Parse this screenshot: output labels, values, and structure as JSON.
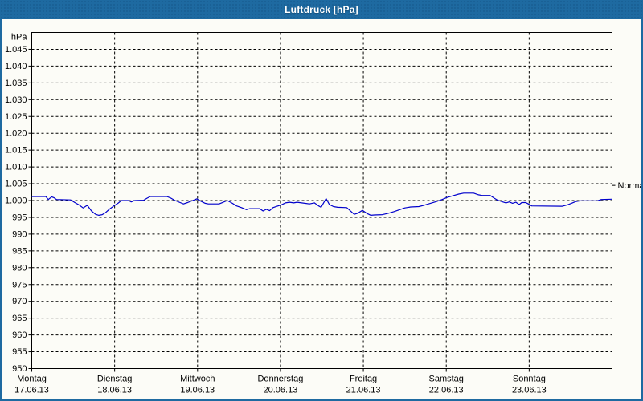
{
  "window": {
    "title": "Luftdruck [hPa]",
    "titlebar_color": "#1e6aa1",
    "border_color": "#1e6aa1",
    "background_color": "#fcfcf7"
  },
  "chart_data": {
    "type": "line",
    "title": "Luftdruck [hPa]",
    "grid": "dashed",
    "legend_position": "none",
    "line_color": "#0000cc",
    "ylim": [
      950,
      1050
    ],
    "xlim_days": [
      0,
      7
    ],
    "y_axis": {
      "unit": "hPa",
      "tick_values": [
        950,
        955,
        960,
        965,
        970,
        975,
        980,
        985,
        990,
        995,
        1000,
        1005,
        1010,
        1015,
        1020,
        1025,
        1030,
        1035,
        1040,
        1045
      ],
      "tick_labels": [
        "950",
        "955",
        "960",
        "965",
        "970",
        "975",
        "980",
        "985",
        "990",
        "995",
        "1.000",
        "1.005",
        "1.010",
        "1.015",
        "1.020",
        "1.025",
        "1.030",
        "1.035",
        "1.040",
        "1.045"
      ]
    },
    "x_days": [
      {
        "name": "Montag",
        "date": "17.06.13"
      },
      {
        "name": "Dienstag",
        "date": "18.06.13"
      },
      {
        "name": "Mittwoch",
        "date": "19.06.13"
      },
      {
        "name": "Donnerstag",
        "date": "20.06.13"
      },
      {
        "name": "Freitag",
        "date": "21.06.13"
      },
      {
        "name": "Samstag",
        "date": "22.06.13"
      },
      {
        "name": "Sonntag",
        "date": "23.06.13"
      }
    ],
    "normal_marker": {
      "label": "Normal",
      "value": 1004.5
    },
    "series": [
      {
        "name": "Luftdruck",
        "x_unit": "days since Montag 17.06.13 00:00",
        "y_unit": "hPa",
        "points": [
          [
            0,
            1001.2
          ],
          [
            0.17,
            1001.2
          ],
          [
            0.2,
            1000.3
          ],
          [
            0.24,
            1001.1
          ],
          [
            0.27,
            1000.8
          ],
          [
            0.3,
            1000.3
          ],
          [
            0.47,
            1000.2
          ],
          [
            0.52,
            999.4
          ],
          [
            0.57,
            998.7
          ],
          [
            0.62,
            997.8
          ],
          [
            0.67,
            998.6
          ],
          [
            0.72,
            996.9
          ],
          [
            0.77,
            995.9
          ],
          [
            0.81,
            995.6
          ],
          [
            0.85,
            995.8
          ],
          [
            0.89,
            996.4
          ],
          [
            0.94,
            997.5
          ],
          [
            0.99,
            998.4
          ],
          [
            1.04,
            999.2
          ],
          [
            1.08,
            1000.0
          ],
          [
            1.17,
            1000.0
          ],
          [
            1.2,
            999.6
          ],
          [
            1.24,
            1000.0
          ],
          [
            1.35,
            1000.1
          ],
          [
            1.39,
            1000.7
          ],
          [
            1.43,
            1001.2
          ],
          [
            1.63,
            1001.2
          ],
          [
            1.68,
            1000.7
          ],
          [
            1.73,
            1000.0
          ],
          [
            1.79,
            999.4
          ],
          [
            1.83,
            999.0
          ],
          [
            1.88,
            999.4
          ],
          [
            1.93,
            999.9
          ],
          [
            1.99,
            1000.5
          ],
          [
            2.04,
            999.8
          ],
          [
            2.09,
            999.2
          ],
          [
            2.13,
            999.0
          ],
          [
            2.26,
            999.0
          ],
          [
            2.31,
            999.5
          ],
          [
            2.36,
            1000.0
          ],
          [
            2.42,
            999.2
          ],
          [
            2.47,
            998.4
          ],
          [
            2.53,
            997.9
          ],
          [
            2.59,
            997.3
          ],
          [
            2.63,
            997.6
          ],
          [
            2.75,
            997.6
          ],
          [
            2.79,
            996.9
          ],
          [
            2.83,
            997.4
          ],
          [
            2.87,
            997.0
          ],
          [
            2.91,
            997.9
          ],
          [
            2.96,
            998.3
          ],
          [
            3.01,
            998.7
          ],
          [
            3.06,
            999.3
          ],
          [
            3.11,
            999.5
          ],
          [
            3.16,
            999.3
          ],
          [
            3.2,
            999.5
          ],
          [
            3.35,
            999.0
          ],
          [
            3.41,
            999.3
          ],
          [
            3.46,
            998.4
          ],
          [
            3.49,
            998.0
          ],
          [
            3.52,
            999.3
          ],
          [
            3.55,
            1000.6
          ],
          [
            3.59,
            998.8
          ],
          [
            3.64,
            998.2
          ],
          [
            3.69,
            998.0
          ],
          [
            3.8,
            997.9
          ],
          [
            3.84,
            997.0
          ],
          [
            3.89,
            995.9
          ],
          [
            3.93,
            996.2
          ],
          [
            3.99,
            997.1
          ],
          [
            4.04,
            996.2
          ],
          [
            4.09,
            995.6
          ],
          [
            4.13,
            995.7
          ],
          [
            4.23,
            995.8
          ],
          [
            4.3,
            996.2
          ],
          [
            4.37,
            996.7
          ],
          [
            4.43,
            997.2
          ],
          [
            4.5,
            997.8
          ],
          [
            4.57,
            998.1
          ],
          [
            4.67,
            998.2
          ],
          [
            4.73,
            998.6
          ],
          [
            4.81,
            999.2
          ],
          [
            4.88,
            999.7
          ],
          [
            4.95,
            1000.3
          ],
          [
            5.01,
            1000.9
          ],
          [
            5.08,
            1001.4
          ],
          [
            5.15,
            1001.9
          ],
          [
            5.21,
            1002.2
          ],
          [
            5.33,
            1002.2
          ],
          [
            5.39,
            1001.7
          ],
          [
            5.43,
            1001.5
          ],
          [
            5.53,
            1001.5
          ],
          [
            5.58,
            1000.7
          ],
          [
            5.62,
            1000.1
          ],
          [
            5.68,
            999.6
          ],
          [
            5.72,
            999.3
          ],
          [
            5.76,
            999.6
          ],
          [
            5.8,
            999.2
          ],
          [
            5.84,
            999.5
          ],
          [
            5.88,
            998.8
          ],
          [
            5.91,
            999.4
          ],
          [
            5.96,
            999.4
          ],
          [
            5.99,
            999.0
          ],
          [
            6.03,
            998.4
          ],
          [
            6.4,
            998.3
          ],
          [
            6.46,
            998.7
          ],
          [
            6.51,
            999.2
          ],
          [
            6.56,
            999.7
          ],
          [
            6.61,
            999.9
          ],
          [
            6.82,
            999.9
          ],
          [
            6.87,
            1000.3
          ],
          [
            7,
            1000.4
          ]
        ]
      }
    ]
  }
}
